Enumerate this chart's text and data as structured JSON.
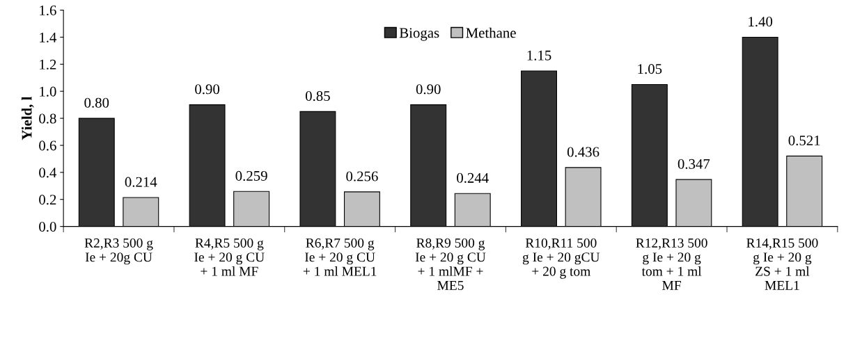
{
  "chart_data": {
    "type": "bar",
    "ylabel": "Yield, l",
    "categories": [
      "R2,R3 500 g\nIe + 20g CU",
      "R4,R5 500 g\nIe + 20 g CU\n+ 1 ml MF",
      "R6,R7 500 g\nIe + 20 g CU\n+ 1 ml MEL1",
      "R8,R9 500 g\nIe + 20 g CU\n+ 1 mlMF +\nME5",
      "R10,R11 500\ng Ie + 20 gCU\n+ 20 g tom",
      "R12,R13 500\ng Ie + 20 g\ntom + 1 ml\nMF",
      "R14,R15 500\ng Ie + 20 g\nZS + 1 ml\nMEL1"
    ],
    "series": [
      {
        "name": "Biogas",
        "color": "#333333",
        "values": [
          0.8,
          0.9,
          0.85,
          0.9,
          1.15,
          1.05,
          1.4
        ],
        "value_labels": [
          "0.80",
          "0.90",
          "0.85",
          "0.90",
          "1.15",
          "1.05",
          "1.40"
        ]
      },
      {
        "name": "Methane",
        "color": "#c0c0c0",
        "values": [
          0.214,
          0.259,
          0.256,
          0.244,
          0.436,
          0.347,
          0.521
        ],
        "value_labels": [
          "0.214",
          "0.259",
          "0.256",
          "0.244",
          "0.436",
          "0.347",
          "0.521"
        ]
      }
    ],
    "ylim": [
      0,
      1.6
    ],
    "yticks": [
      {
        "value": 0,
        "label": "0.0"
      },
      {
        "value": 0.2,
        "label": "0.2"
      },
      {
        "value": 0.4,
        "label": "0.4"
      },
      {
        "value": 0.6,
        "label": "0.6"
      },
      {
        "value": 0.8,
        "label": "0.8"
      },
      {
        "value": 1.0,
        "label": "1.0"
      },
      {
        "value": 1.2,
        "label": "1.2"
      },
      {
        "value": 1.4,
        "label": "1.4"
      },
      {
        "value": 1.6,
        "label": "1.6"
      }
    ],
    "legend": "top",
    "grid": false
  }
}
